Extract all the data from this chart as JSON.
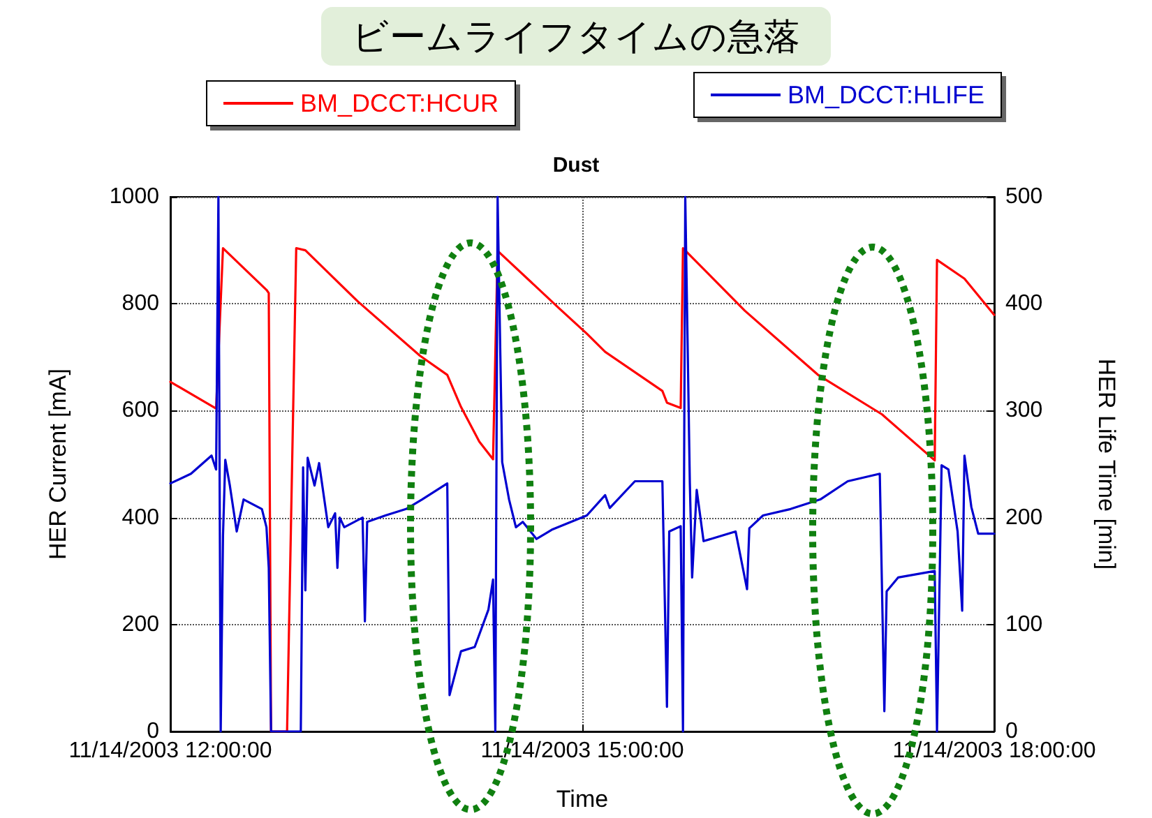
{
  "chart_data": {
    "type": "line",
    "title": "ビームライフタイムの急落",
    "subtitle": "Dust",
    "xlabel": "Time",
    "ylabel": "HER Current [mA]",
    "y2label": "HER Life Time [min]",
    "xlim": [
      "2003-11-14T12:00",
      "2003-11-14T18:00"
    ],
    "xticks": [
      {
        "value": "2003-11-14T12:00",
        "label": "11/14/2003 12:00:00"
      },
      {
        "value": "2003-11-14T15:00",
        "label": "11/14/2003 15:00:00"
      },
      {
        "value": "2003-11-14T18:00",
        "label": "11/14/2003 18:00:00"
      }
    ],
    "ylim": [
      0,
      1000
    ],
    "yticks": [
      0,
      200,
      400,
      600,
      800,
      1000
    ],
    "y2lim": [
      0,
      500
    ],
    "y2ticks": [
      0,
      100,
      200,
      300,
      400,
      500
    ],
    "grid": true,
    "legend": "top",
    "marker": "none",
    "line_style": "solid",
    "series": [
      {
        "name": "BM_DCCT:HCUR",
        "color": "#ff0000",
        "x": [
          "2003-11-14T12:00",
          "2003-11-14T12:20",
          "2003-11-14T12:23",
          "2003-11-14T12:42",
          "2003-11-14T12:43",
          "2003-11-14T12:44",
          "2003-11-14T12:51",
          "2003-11-14T12:55",
          "2003-11-14T12:59",
          "2003-11-14T13:22",
          "2003-11-14T13:49",
          "2003-11-14T14:01",
          "2003-11-14T14:07",
          "2003-11-14T14:15",
          "2003-11-14T14:21",
          "2003-11-14T14:23",
          "2003-11-14T14:50",
          "2003-11-14T15:02",
          "2003-11-14T15:10",
          "2003-11-14T15:35",
          "2003-11-14T15:37",
          "2003-11-14T15:43",
          "2003-11-14T15:44",
          "2003-11-14T16:11",
          "2003-11-14T16:43",
          "2003-11-14T17:11",
          "2003-11-14T17:34",
          "2003-11-14T17:35",
          "2003-11-14T17:47",
          "2003-11-14T18:00"
        ],
        "values": [
          654,
          604,
          904,
          826,
          820,
          0,
          0,
          904,
          900,
          804,
          703,
          667,
          607,
          542,
          509,
          899,
          791,
          744,
          710,
          637,
          615,
          605,
          904,
          787,
          667,
          593,
          507,
          882,
          847,
          779
        ]
      },
      {
        "name": "BM_DCCT:HLIFE",
        "color": "#0000d0",
        "axis": "y2",
        "x": [
          "2003-11-14T12:00",
          "2003-11-14T12:09",
          "2003-11-14T12:18",
          "2003-11-14T12:20",
          "2003-11-14T12:21",
          "2003-11-14T12:22",
          "2003-11-14T12:23",
          "2003-11-14T12:24",
          "2003-11-14T12:26",
          "2003-11-14T12:29",
          "2003-11-14T12:32",
          "2003-11-14T12:40",
          "2003-11-14T12:42",
          "2003-11-14T12:43",
          "2003-11-14T12:44",
          "2003-11-14T12:57",
          "2003-11-14T12:58",
          "2003-11-14T12:59",
          "2003-11-14T13:00",
          "2003-11-14T13:03",
          "2003-11-14T13:05",
          "2003-11-14T13:09",
          "2003-11-14T13:12",
          "2003-11-14T13:13",
          "2003-11-14T13:14",
          "2003-11-14T13:16",
          "2003-11-14T13:24",
          "2003-11-14T13:25",
          "2003-11-14T13:26",
          "2003-11-14T13:34",
          "2003-11-14T13:43",
          "2003-11-14T13:50",
          "2003-11-14T14:01",
          "2003-11-14T14:02",
          "2003-11-14T14:07",
          "2003-11-14T14:13",
          "2003-11-14T14:19",
          "2003-11-14T14:21",
          "2003-11-14T14:22",
          "2003-11-14T14:23",
          "2003-11-14T14:25",
          "2003-11-14T14:28",
          "2003-11-14T14:31",
          "2003-11-14T14:34",
          "2003-11-14T14:40",
          "2003-11-14T14:47",
          "2003-11-14T15:02",
          "2003-11-14T15:10",
          "2003-11-14T15:12",
          "2003-11-14T15:23",
          "2003-11-14T15:35",
          "2003-11-14T15:37",
          "2003-11-14T15:38",
          "2003-11-14T15:43",
          "2003-11-14T15:44",
          "2003-11-14T15:45",
          "2003-11-14T15:47",
          "2003-11-14T15:48",
          "2003-11-14T15:50",
          "2003-11-14T15:53",
          "2003-11-14T16:07",
          "2003-11-14T16:12",
          "2003-11-14T16:13",
          "2003-11-14T16:19",
          "2003-11-14T16:31",
          "2003-11-14T16:44",
          "2003-11-14T16:56",
          "2003-11-14T17:10",
          "2003-11-14T17:12",
          "2003-11-14T17:13",
          "2003-11-14T17:18",
          "2003-11-14T17:34",
          "2003-11-14T17:35",
          "2003-11-14T17:37",
          "2003-11-14T17:40",
          "2003-11-14T17:44",
          "2003-11-14T17:46",
          "2003-11-14T17:47",
          "2003-11-14T17:50",
          "2003-11-14T17:53",
          "2003-11-14T18:00"
        ],
        "values": [
          232,
          241,
          258,
          245,
          500,
          0,
          183,
          254,
          230,
          187,
          217,
          208,
          191,
          153,
          0,
          0,
          247,
          132,
          256,
          230,
          251,
          191,
          204,
          153,
          200,
          191,
          200,
          103,
          196,
          202,
          208,
          217,
          232,
          34,
          75,
          79,
          114,
          142,
          0,
          500,
          252,
          217,
          191,
          196,
          180,
          189,
          202,
          221,
          209,
          234,
          234,
          23,
          187,
          192,
          0,
          500,
          232,
          144,
          226,
          178,
          187,
          133,
          190,
          202,
          208,
          217,
          234,
          241,
          19,
          131,
          144,
          150,
          0,
          249,
          245,
          187,
          113,
          258,
          210,
          185,
          185
        ]
      }
    ]
  }
}
